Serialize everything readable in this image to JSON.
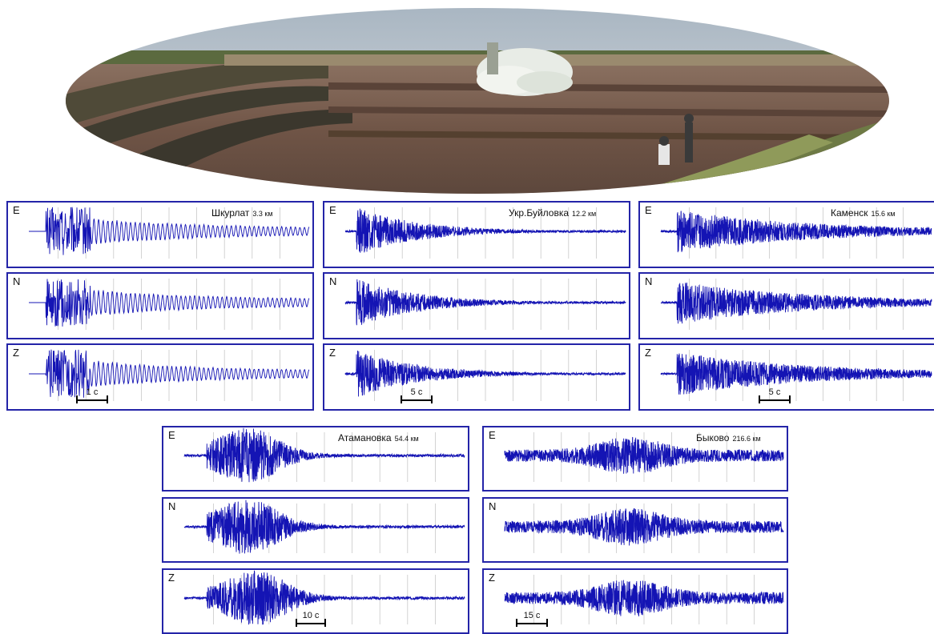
{
  "photo": {
    "description_icon": "quarry-blast-photo"
  },
  "colors": {
    "trace": "#1414b4",
    "frame": "#2424a8",
    "grid": "#c8c8c8"
  },
  "stations": [
    {
      "id": "shkurlat",
      "name": "Шкурлат",
      "distance": "3.3 км",
      "scale_label": "1 с",
      "traces": [
        {
          "component": "E"
        },
        {
          "component": "N"
        },
        {
          "component": "Z"
        }
      ]
    },
    {
      "id": "ukr-buylovka",
      "name": "Укр.Буйловка",
      "distance": "12.2 км",
      "scale_label": "5 с",
      "traces": [
        {
          "component": "E"
        },
        {
          "component": "N"
        },
        {
          "component": "Z"
        }
      ]
    },
    {
      "id": "kamensk",
      "name": "Каменск",
      "distance": "15.6 км",
      "scale_label": "5 с",
      "traces": [
        {
          "component": "E"
        },
        {
          "component": "N"
        },
        {
          "component": "Z"
        }
      ]
    },
    {
      "id": "atamanovka",
      "name": "Атамановка",
      "distance": "54.4 км",
      "scale_label": "10 с",
      "traces": [
        {
          "component": "E"
        },
        {
          "component": "N"
        },
        {
          "component": "Z"
        }
      ]
    },
    {
      "id": "bykovo",
      "name": "Быково",
      "distance": "216.6 км",
      "scale_label": "15 с",
      "traces": [
        {
          "component": "E"
        },
        {
          "component": "N"
        },
        {
          "component": "Z"
        }
      ]
    }
  ]
}
